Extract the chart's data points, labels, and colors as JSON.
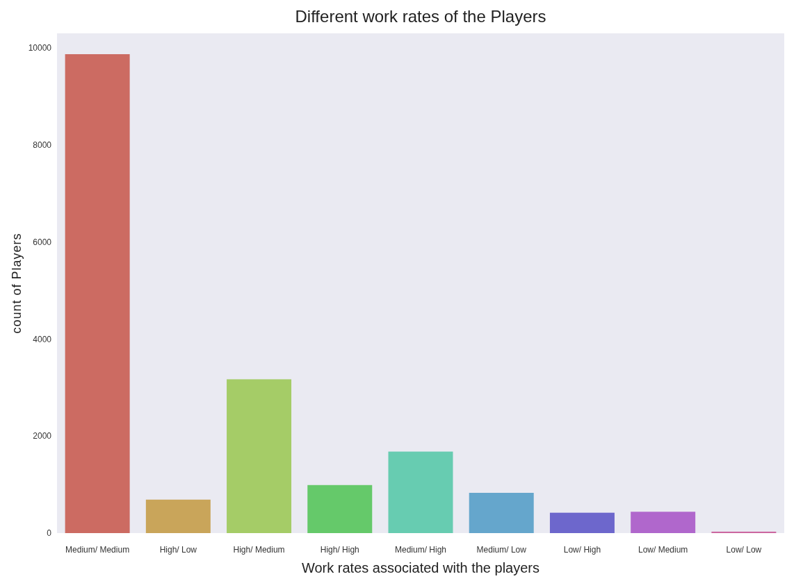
{
  "chart_data": {
    "type": "bar",
    "title": "Different work rates of the Players",
    "xlabel": "Work rates associated with the players",
    "ylabel": "count of Players",
    "categories": [
      "Medium/ Medium",
      "High/ Low",
      "High/ Medium",
      "High/ High",
      "Medium/ High",
      "Medium/ Low",
      "Low/ High",
      "Low/ Medium",
      "Low/ Low"
    ],
    "values": [
      9870,
      690,
      3170,
      990,
      1680,
      830,
      420,
      440,
      30
    ],
    "colors": [
      "#cc6b62",
      "#c9a55a",
      "#a5cc67",
      "#65c96a",
      "#67ccb1",
      "#65a6cc",
      "#6d67cc",
      "#b067cc",
      "#cc67a0"
    ],
    "ylim": [
      0,
      10300
    ],
    "yticks": [
      0,
      2000,
      4000,
      6000,
      8000,
      10000
    ],
    "grid": false
  }
}
